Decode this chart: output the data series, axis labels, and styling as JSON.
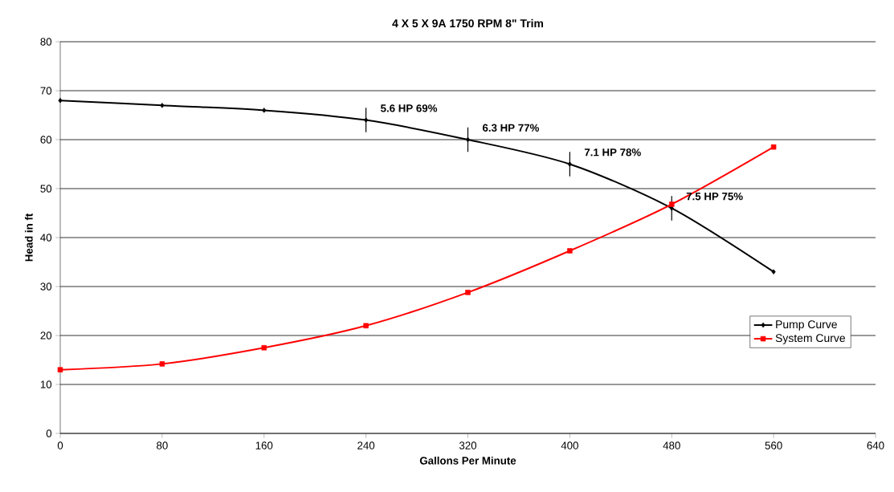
{
  "chart_data": {
    "type": "line",
    "title": "4 X 5 X 9A  1750 RPM 8\" Trim",
    "xlabel": "Gallons Per Minute",
    "ylabel": "Head in ft",
    "x": [
      0,
      80,
      160,
      240,
      320,
      400,
      480,
      560
    ],
    "series": [
      {
        "name": "Pump Curve",
        "color": "#000000",
        "marker": "diamond",
        "values": [
          68,
          67,
          66,
          64,
          60,
          55,
          46,
          33
        ],
        "errors": [
          null,
          null,
          null,
          2.5,
          2.5,
          2.5,
          2.5,
          null
        ]
      },
      {
        "name": "System Curve",
        "color": "#ff0000",
        "marker": "square",
        "values": [
          13,
          14.2,
          17.5,
          22,
          28.8,
          37.3,
          46.8,
          58.5
        ]
      }
    ],
    "xlim": [
      0,
      640
    ],
    "xticks": [
      0,
      80,
      160,
      240,
      320,
      400,
      480,
      560,
      640
    ],
    "ylim": [
      0,
      80
    ],
    "yticks": [
      0,
      10,
      20,
      30,
      40,
      50,
      60,
      70,
      80
    ],
    "grid": "y",
    "legend": "right",
    "line_style": "solid",
    "annotations": [
      {
        "text": "5.6 HP  69%",
        "x": 240,
        "y": 64
      },
      {
        "text": "6.3 HP  77%",
        "x": 320,
        "y": 60
      },
      {
        "text": "7.1 HP  78%",
        "x": 400,
        "y": 55
      },
      {
        "text": "7.5 HP  75%",
        "x": 480,
        "y": 46
      }
    ]
  }
}
